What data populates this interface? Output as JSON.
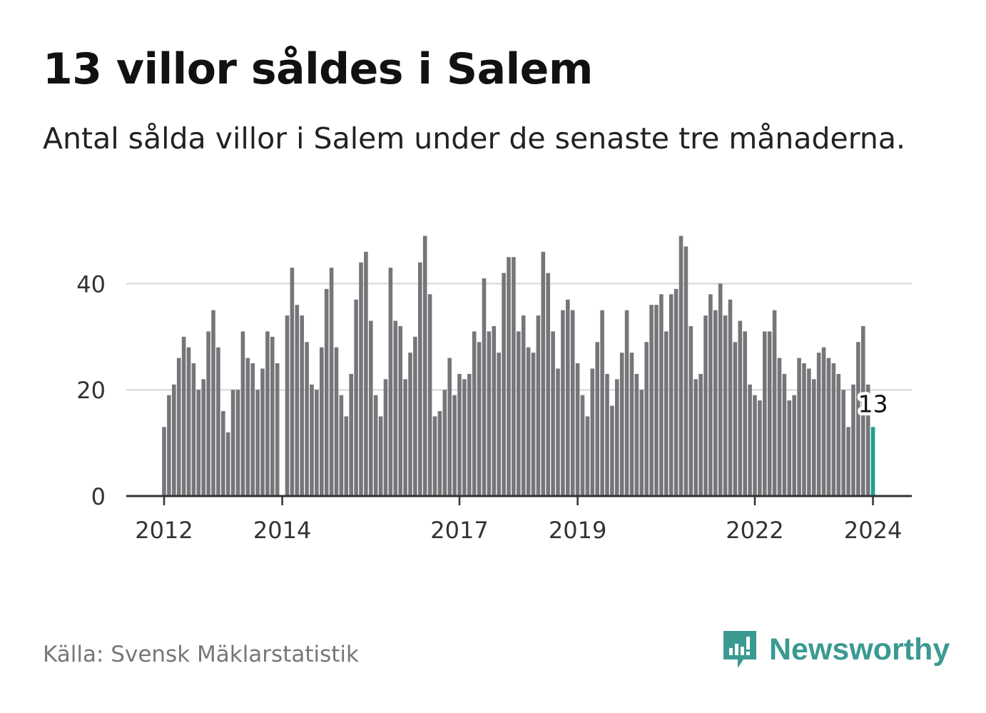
{
  "title": "13 villor såldes i Salem",
  "subtitle": "Antal sålda villor i Salem under de senaste tre månaderna.",
  "source": "Källa: Svensk Mäklarstatistik",
  "brand": {
    "name": "Newsworthy",
    "color": "#3a9a92",
    "icon": "newsworthy-logo-icon"
  },
  "chart_data": {
    "type": "bar",
    "title": "13 villor såldes i Salem",
    "xlabel": "",
    "ylabel": "",
    "ylim": [
      0,
      50
    ],
    "yticks": [
      0,
      20,
      40
    ],
    "grid": true,
    "colors": {
      "bar": "#76767a",
      "highlight": "#1fa090",
      "grid": "#dddddd",
      "axis": "#333333"
    },
    "x_ticks": [
      {
        "label": "2012",
        "index": 0
      },
      {
        "label": "2014",
        "index": 24
      },
      {
        "label": "2017",
        "index": 60
      },
      {
        "label": "2019",
        "index": 84
      },
      {
        "label": "2022",
        "index": 120
      },
      {
        "label": "2024",
        "index": 144
      }
    ],
    "highlight_label": "13",
    "highlight_index": 144,
    "values": [
      13,
      19,
      21,
      26,
      30,
      28,
      25,
      20,
      22,
      31,
      35,
      28,
      16,
      12,
      20,
      20,
      31,
      26,
      25,
      20,
      24,
      31,
      30,
      25,
      0,
      34,
      43,
      36,
      34,
      29,
      21,
      20,
      28,
      39,
      43,
      28,
      19,
      15,
      23,
      37,
      44,
      46,
      33,
      19,
      15,
      22,
      43,
      33,
      32,
      22,
      27,
      30,
      44,
      49,
      38,
      15,
      16,
      20,
      26,
      19,
      23,
      22,
      23,
      31,
      29,
      41,
      31,
      32,
      27,
      42,
      45,
      45,
      31,
      34,
      28,
      27,
      34,
      46,
      42,
      31,
      24,
      35,
      37,
      35,
      25,
      19,
      15,
      24,
      29,
      35,
      23,
      17,
      22,
      27,
      35,
      27,
      23,
      20,
      29,
      36,
      36,
      38,
      31,
      38,
      39,
      49,
      47,
      32,
      22,
      23,
      34,
      38,
      35,
      40,
      34,
      37,
      29,
      33,
      31,
      21,
      19,
      18,
      31,
      31,
      35,
      26,
      23,
      18,
      19,
      26,
      25,
      24,
      22,
      27,
      28,
      26,
      25,
      23,
      20,
      13,
      21,
      29,
      32,
      21,
      13
    ]
  }
}
